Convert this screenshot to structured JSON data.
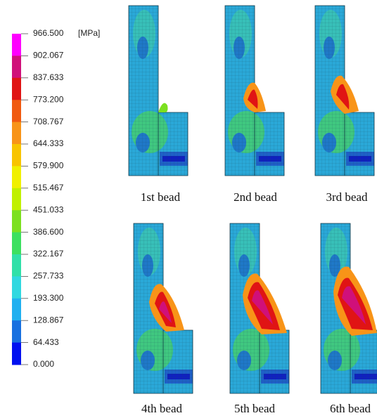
{
  "legend": {
    "unit": "[MPa]",
    "labels": [
      "966.500",
      "902.067",
      "837.633",
      "773.200",
      "708.767",
      "644.333",
      "579.900",
      "515.467",
      "451.033",
      "386.600",
      "322.167",
      "257.733",
      "193.300",
      "128.867",
      "64.433",
      "0.000"
    ],
    "colors": [
      "#ff00ff",
      "#d0107a",
      "#e01414",
      "#f05a10",
      "#f89418",
      "#f8c400",
      "#f0f000",
      "#c0f000",
      "#7ce020",
      "#3ce060",
      "#30e0a8",
      "#30d8e0",
      "#20b0f0",
      "#1870e0",
      "#0010f0"
    ]
  },
  "panels": [
    {
      "caption": "1st bead"
    },
    {
      "caption": "2nd bead"
    },
    {
      "caption": "3rd bead"
    },
    {
      "caption": "4th bead"
    },
    {
      "caption": "5th bead"
    },
    {
      "caption": "6th bead"
    }
  ]
}
